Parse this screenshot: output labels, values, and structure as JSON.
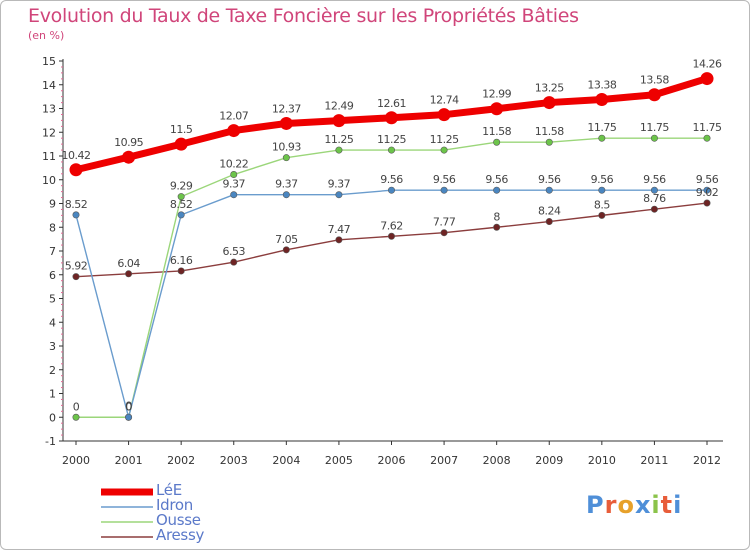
{
  "header": {
    "title": "Evolution du Taux de Taxe Foncière sur les Propriétés Bâties",
    "subtitle": "(en %)"
  },
  "logo": {
    "text": "Proxiti",
    "letters": [
      "P",
      "r",
      "o",
      "x",
      "i",
      "t",
      "i"
    ],
    "colors": [
      "#4f8fd8",
      "#e85d3a",
      "#e7a12a",
      "#4f8fd8",
      "#8bc34a",
      "#e85d3a",
      "#4f8fd8"
    ]
  },
  "chart_data": {
    "type": "line",
    "title": "Evolution du Taux de Taxe Foncière sur les Propriétés Bâties",
    "ylabel": "(en %)",
    "xlabel": "",
    "x": [
      "2000",
      "2001",
      "2002",
      "2003",
      "2004",
      "2005",
      "2006",
      "2007",
      "2008",
      "2009",
      "2010",
      "2011",
      "2012"
    ],
    "ylim": [
      -1,
      15
    ],
    "yticks": [
      -1,
      0,
      1,
      2,
      3,
      4,
      5,
      6,
      7,
      8,
      9,
      10,
      11,
      12,
      13,
      14,
      15
    ],
    "ytick_labels": [
      "-1",
      "0",
      "1",
      "2",
      "3",
      "4",
      "5",
      "6",
      "7",
      "8",
      "9",
      "10",
      "11",
      "12",
      "13",
      "14",
      "15"
    ],
    "grid": false,
    "legend_position": "bottom-left",
    "series": [
      {
        "name": "LéE",
        "color": "#ee0000",
        "values": [
          10.42,
          10.95,
          11.5,
          12.07,
          12.37,
          12.49,
          12.61,
          12.74,
          12.99,
          13.25,
          13.38,
          13.58,
          14.26
        ],
        "labels": [
          "10.42",
          "10.95",
          "11.5",
          "12.07",
          "12.37",
          "12.49",
          "12.61",
          "12.74",
          "12.99",
          "13.25",
          "13.38",
          "13.58",
          "14.26"
        ]
      },
      {
        "name": "Idron",
        "color": "#6a9ccd",
        "marker_color": "#4a86c0",
        "values": [
          8.52,
          0,
          8.52,
          9.37,
          9.37,
          9.37,
          9.56,
          9.56,
          9.56,
          9.56,
          9.56,
          9.56,
          9.56
        ],
        "labels": [
          "8.52",
          "0",
          "8.52",
          "9.37",
          "9.37",
          "9.37",
          "9.56",
          "9.56",
          "9.56",
          "9.56",
          "9.56",
          "9.56",
          "9.56"
        ]
      },
      {
        "name": "Ousse",
        "color": "#9bd67a",
        "marker_color": "#6cc44a",
        "values": [
          0,
          0,
          9.29,
          10.22,
          10.93,
          11.25,
          11.25,
          11.25,
          11.58,
          11.58,
          11.75,
          11.75,
          11.75
        ],
        "labels": [
          "0",
          "0",
          "9.29",
          "10.22",
          "10.93",
          "11.25",
          "11.25",
          "11.25",
          "11.58",
          "11.58",
          "11.75",
          "11.75",
          "11.75"
        ]
      },
      {
        "name": "Aressy",
        "color": "#8b3d3d",
        "marker_color": "#6e2424",
        "values": [
          5.92,
          6.04,
          6.16,
          6.53,
          7.05,
          7.47,
          7.62,
          7.77,
          8,
          8.24,
          8.5,
          8.76,
          9.02
        ],
        "labels": [
          "5.92",
          "6.04",
          "6.16",
          "6.53",
          "7.05",
          "7.47",
          "7.62",
          "7.77",
          "8",
          "8.24",
          "8.5",
          "8.76",
          "9.02"
        ]
      }
    ]
  }
}
